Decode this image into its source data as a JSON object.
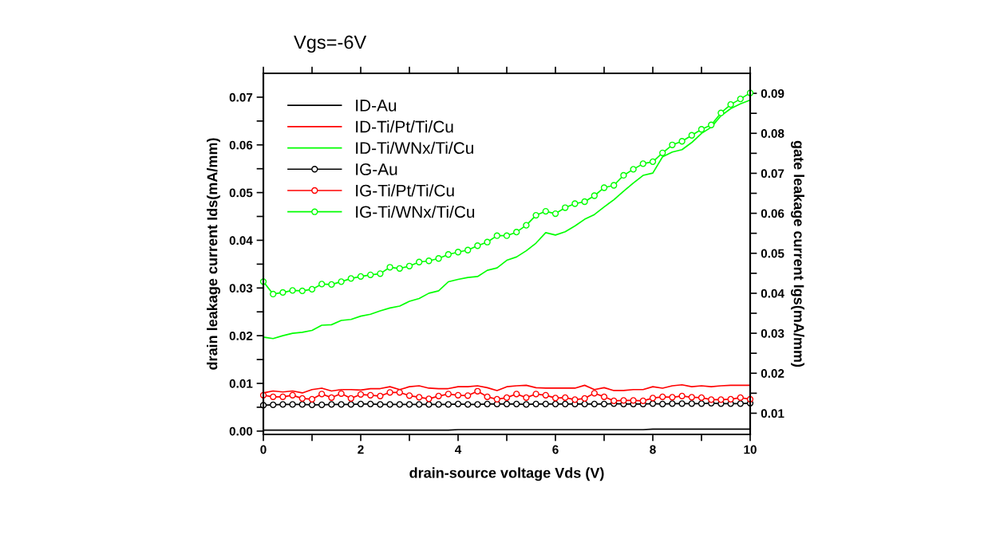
{
  "chart_data": {
    "type": "line",
    "title": "Vgs=-6V",
    "xlabel": "drain-source voltage Vds (V)",
    "ylabel": "drain leakage current Ids(mA/mm)",
    "y2label": "gate leakage current Igs(mA/mm)",
    "x": [
      0,
      0.2,
      0.4,
      0.6,
      0.8,
      1.0,
      1.2,
      1.4,
      1.6,
      1.8,
      2.0,
      2.2,
      2.4,
      2.6,
      2.8,
      3.0,
      3.2,
      3.4,
      3.6,
      3.8,
      4.0,
      4.2,
      4.4,
      4.6,
      4.8,
      5.0,
      5.2,
      5.4,
      5.6,
      5.8,
      6.0,
      6.2,
      6.4,
      6.6,
      6.8,
      7.0,
      7.2,
      7.4,
      7.6,
      7.8,
      8.0,
      8.2,
      8.4,
      8.6,
      8.8,
      9.0,
      9.2,
      9.4,
      9.6,
      9.8,
      10.0
    ],
    "xlim": [
      0,
      10
    ],
    "xticks": [
      0,
      {
        "value": 1,
        "label": null
      },
      2,
      {
        "value": 3,
        "label": null
      },
      4,
      {
        "value": 5,
        "label": null
      },
      6,
      {
        "value": 7,
        "label": null
      },
      8,
      {
        "value": 9,
        "label": null
      },
      10
    ],
    "ylim": [
      -0.0007,
      0.075
    ],
    "yticks": [
      {
        "value": 0,
        "label": "0.00"
      },
      {
        "value": 0.005,
        "label": null
      },
      {
        "value": 0.01,
        "label": "0.01"
      },
      {
        "value": 0.015,
        "label": null
      },
      {
        "value": 0.02,
        "label": "0.02"
      },
      {
        "value": 0.025,
        "label": null
      },
      {
        "value": 0.03,
        "label": "0.03"
      },
      {
        "value": 0.035,
        "label": null
      },
      {
        "value": 0.04,
        "label": "0.04"
      },
      {
        "value": 0.045,
        "label": null
      },
      {
        "value": 0.05,
        "label": "0.05"
      },
      {
        "value": 0.055,
        "label": null
      },
      {
        "value": 0.06,
        "label": "0.06"
      },
      {
        "value": 0.065,
        "label": null
      },
      {
        "value": 0.07,
        "label": "0.07"
      }
    ],
    "y2lim": [
      0.0047,
      0.095
    ],
    "y2ticks": [
      0.01,
      {
        "value": 0.015,
        "label": null
      },
      0.02,
      {
        "value": 0.025,
        "label": null
      },
      0.03,
      {
        "value": 0.035,
        "label": null
      },
      0.04,
      {
        "value": 0.045,
        "label": null
      },
      0.05,
      {
        "value": 0.055,
        "label": null
      },
      0.06,
      {
        "value": 0.065,
        "label": null
      },
      0.07,
      {
        "value": 0.075,
        "label": null
      },
      0.08,
      {
        "value": 0.085,
        "label": null
      },
      0.09
    ],
    "grid": false,
    "legend": "top left",
    "series": [
      {
        "name": "ID-Au",
        "color": "#000000",
        "marker": "none",
        "values": [
          0.0002,
          0.0002,
          0.0002,
          0.0002,
          0.0002,
          0.0002,
          0.0002,
          0.0002,
          0.0002,
          0.0002,
          0.0002,
          0.0002,
          0.0002,
          0.0002,
          0.0002,
          0.0002,
          0.0002,
          0.0002,
          0.0002,
          0.0002,
          0.0003,
          0.0003,
          0.0003,
          0.0003,
          0.0003,
          0.0003,
          0.0003,
          0.0003,
          0.0003,
          0.0003,
          0.0003,
          0.0003,
          0.0003,
          0.0003,
          0.0003,
          0.0003,
          0.0003,
          0.0003,
          0.0003,
          0.0003,
          0.0004,
          0.0004,
          0.0004,
          0.0004,
          0.0004,
          0.0004,
          0.0004,
          0.0004,
          0.0004,
          0.0004,
          0.0004
        ]
      },
      {
        "name": "ID-Ti/Pt/Ti/Cu",
        "color": "#ff0000",
        "marker": "none",
        "values": [
          0.008,
          0.0084,
          0.0082,
          0.0084,
          0.008,
          0.0087,
          0.009,
          0.0084,
          0.0087,
          0.0087,
          0.0086,
          0.0089,
          0.0089,
          0.0093,
          0.0087,
          0.0093,
          0.0095,
          0.009,
          0.0089,
          0.0089,
          0.0093,
          0.0093,
          0.0095,
          0.0091,
          0.0085,
          0.0093,
          0.0095,
          0.0096,
          0.0091,
          0.009,
          0.009,
          0.009,
          0.009,
          0.0096,
          0.0087,
          0.0091,
          0.0085,
          0.0085,
          0.0087,
          0.0087,
          0.0093,
          0.009,
          0.0095,
          0.0097,
          0.0093,
          0.0095,
          0.0093,
          0.0095,
          0.0096,
          0.0096,
          0.0096
        ]
      },
      {
        "name": "ID-Ti/WNx/Ti/Cu",
        "color": "#00ff00",
        "marker": "none",
        "values": [
          0.0197,
          0.0194,
          0.02,
          0.0205,
          0.0207,
          0.0211,
          0.0222,
          0.0223,
          0.0232,
          0.0234,
          0.0241,
          0.0245,
          0.0252,
          0.0258,
          0.0262,
          0.0272,
          0.0278,
          0.0289,
          0.0294,
          0.0313,
          0.0318,
          0.0322,
          0.0324,
          0.0337,
          0.0342,
          0.0358,
          0.0365,
          0.0378,
          0.0394,
          0.0416,
          0.0411,
          0.0418,
          0.043,
          0.0444,
          0.0454,
          0.047,
          0.0485,
          0.0503,
          0.052,
          0.0536,
          0.0541,
          0.0575,
          0.0585,
          0.059,
          0.0605,
          0.0624,
          0.0637,
          0.0661,
          0.0676,
          0.0686,
          0.0694
        ]
      },
      {
        "name": "IG-Au",
        "color": "#000000",
        "marker": "circle",
        "axis": "y2",
        "values": [
          0.012,
          0.0121,
          0.0122,
          0.0122,
          0.0122,
          0.0121,
          0.0121,
          0.0122,
          0.0122,
          0.0122,
          0.0123,
          0.0123,
          0.0122,
          0.0122,
          0.0122,
          0.0122,
          0.0122,
          0.0122,
          0.0122,
          0.0122,
          0.0123,
          0.0122,
          0.0122,
          0.0123,
          0.0123,
          0.0123,
          0.0123,
          0.0122,
          0.0123,
          0.0123,
          0.0123,
          0.0123,
          0.0123,
          0.0123,
          0.0123,
          0.0123,
          0.0124,
          0.0123,
          0.0123,
          0.0123,
          0.0124,
          0.0123,
          0.0124,
          0.0124,
          0.0124,
          0.0124,
          0.0125,
          0.0124,
          0.0124,
          0.0124,
          0.0125
        ]
      },
      {
        "name": "IG-Ti/Pt/Ti/Cu",
        "color": "#ff0000",
        "marker": "circle",
        "axis": "y2",
        "values": [
          0.0145,
          0.0141,
          0.0141,
          0.0145,
          0.0137,
          0.0135,
          0.0148,
          0.0139,
          0.0149,
          0.0137,
          0.0147,
          0.0145,
          0.0143,
          0.0152,
          0.0152,
          0.0144,
          0.014,
          0.0136,
          0.0143,
          0.0148,
          0.0145,
          0.0144,
          0.0155,
          0.0141,
          0.0135,
          0.0139,
          0.0148,
          0.0139,
          0.0148,
          0.0145,
          0.0138,
          0.0139,
          0.0134,
          0.0137,
          0.015,
          0.0141,
          0.0131,
          0.0132,
          0.0132,
          0.0131,
          0.0138,
          0.0141,
          0.014,
          0.0143,
          0.014,
          0.0139,
          0.0134,
          0.0134,
          0.0135,
          0.0139,
          0.0135
        ]
      },
      {
        "name": "IG-Ti/WNx/Ti/Cu",
        "color": "#00ff00",
        "marker": "circle",
        "axis": "y2",
        "values": [
          0.0429,
          0.0398,
          0.0402,
          0.0407,
          0.0406,
          0.041,
          0.0423,
          0.0422,
          0.0429,
          0.0437,
          0.0442,
          0.0446,
          0.0449,
          0.0465,
          0.0462,
          0.0468,
          0.0478,
          0.0481,
          0.0487,
          0.0497,
          0.0503,
          0.0508,
          0.0519,
          0.0528,
          0.0544,
          0.0544,
          0.0553,
          0.057,
          0.0595,
          0.0605,
          0.0599,
          0.0614,
          0.0624,
          0.0629,
          0.0644,
          0.0664,
          0.067,
          0.0695,
          0.071,
          0.0724,
          0.0729,
          0.0751,
          0.0771,
          0.078,
          0.0795,
          0.081,
          0.0821,
          0.0851,
          0.0872,
          0.0886,
          0.0901
        ]
      }
    ]
  }
}
